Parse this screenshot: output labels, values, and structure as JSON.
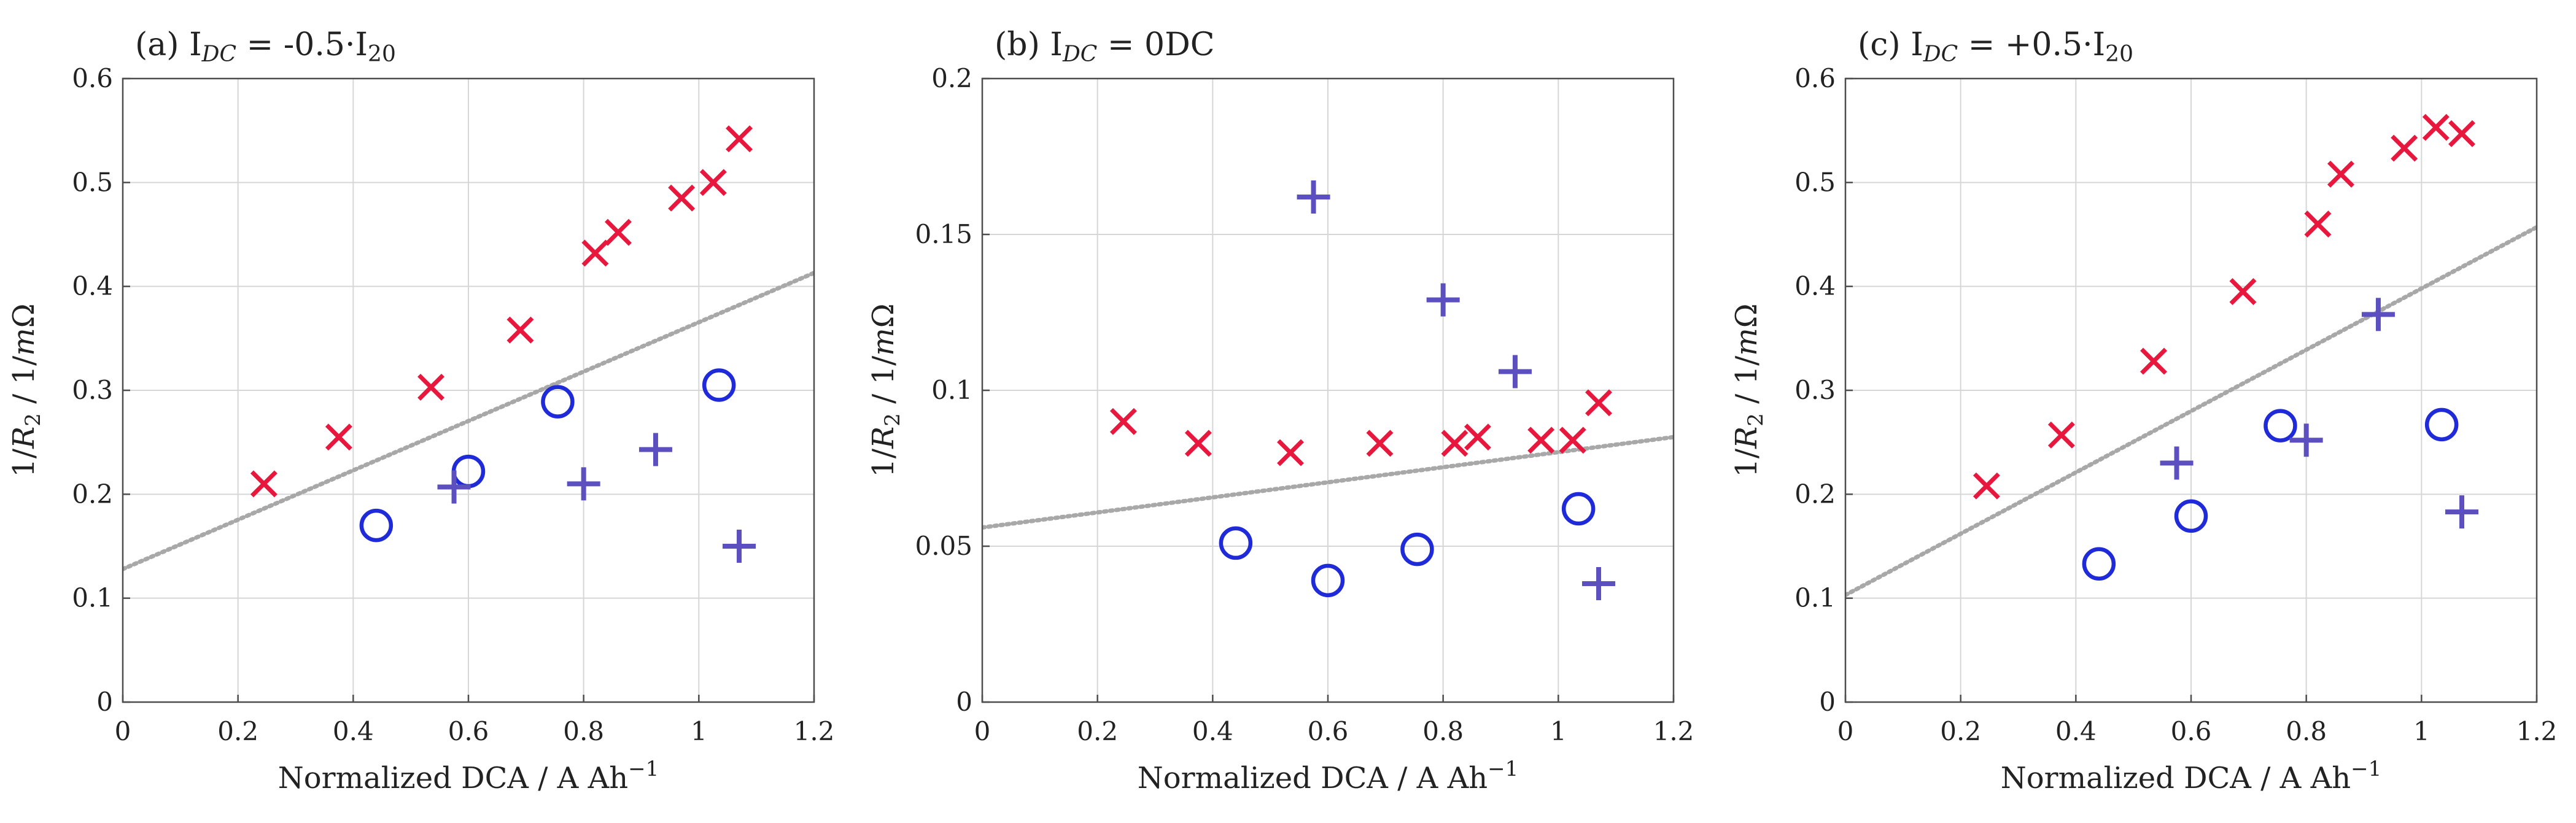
{
  "chart_data": [
    {
      "type": "scatter",
      "panel": "a",
      "title": "(a) I_DC = -0.5·I_20",
      "title_parts": {
        "prefix": "(a) I",
        "sub": "DC",
        "eq": " = -0.5·I",
        "sub2": "20"
      },
      "xlabel": "Normalized DCA / A Ah",
      "xlabel_sup": "−1",
      "ylabel": "1/R₂ / 1/mΩ",
      "ylabel_parts": {
        "a": "1/",
        "r": "R",
        "sub": "2",
        "b": " / 1/",
        "m": "m",
        "omega": "Ω"
      },
      "xlim": [
        0,
        1.2
      ],
      "ylim": [
        0,
        0.6
      ],
      "xticks": [
        0,
        0.2,
        0.4,
        0.6,
        0.8,
        1,
        1.2
      ],
      "xtick_labels": [
        "0",
        "0.2",
        "0.4",
        "0.6",
        "0.8",
        "1",
        "1.2"
      ],
      "yticks": [
        0,
        0.1,
        0.2,
        0.3,
        0.4,
        0.5,
        0.6
      ],
      "ytick_labels": [
        "0",
        "0.1",
        "0.2",
        "0.3",
        "0.4",
        "0.5",
        "0.6"
      ],
      "grid": true,
      "series": [
        {
          "name": "cross",
          "marker": "x",
          "color": "#e8173d",
          "x": [
            0.245,
            0.375,
            0.535,
            0.69,
            0.82,
            0.86,
            0.97,
            1.025,
            1.07
          ],
          "y": [
            0.21,
            0.255,
            0.303,
            0.358,
            0.432,
            0.452,
            0.485,
            0.5,
            0.542
          ]
        },
        {
          "name": "circle",
          "marker": "o",
          "color": "#1f2bd9",
          "x": [
            0.44,
            0.6,
            0.755,
            1.035
          ],
          "y": [
            0.17,
            0.222,
            0.289,
            0.305
          ]
        },
        {
          "name": "plus",
          "marker": "+",
          "color": "#5c4fbf",
          "x": [
            0.575,
            0.8,
            0.925,
            1.07
          ],
          "y": [
            0.207,
            0.21,
            0.243,
            0.15
          ]
        }
      ],
      "trendline": {
        "x": [
          0,
          1.2
        ],
        "y": [
          0.128,
          0.413
        ]
      }
    },
    {
      "type": "scatter",
      "panel": "b",
      "title": "(b) I_DC = 0DC",
      "title_parts": {
        "prefix": "(b) I",
        "sub": "DC",
        "eq": " = 0DC",
        "sub2": ""
      },
      "xlabel": "Normalized DCA / A Ah",
      "xlabel_sup": "−1",
      "ylabel": "1/R₂ / 1/mΩ",
      "ylabel_parts": {
        "a": "1/",
        "r": "R",
        "sub": "2",
        "b": " / 1/",
        "m": "m",
        "omega": "Ω"
      },
      "xlim": [
        0,
        1.2
      ],
      "ylim": [
        0,
        0.2
      ],
      "xticks": [
        0,
        0.2,
        0.4,
        0.6,
        0.8,
        1,
        1.2
      ],
      "xtick_labels": [
        "0",
        "0.2",
        "0.4",
        "0.6",
        "0.8",
        "1",
        "1.2"
      ],
      "yticks": [
        0,
        0.05,
        0.1,
        0.15,
        0.2
      ],
      "ytick_labels": [
        "0",
        "0.05",
        "0.1",
        "0.15",
        "0.2"
      ],
      "grid": true,
      "series": [
        {
          "name": "cross",
          "marker": "x",
          "color": "#e8173d",
          "x": [
            0.245,
            0.375,
            0.535,
            0.69,
            0.82,
            0.86,
            0.97,
            1.025,
            1.07
          ],
          "y": [
            0.09,
            0.083,
            0.08,
            0.083,
            0.083,
            0.085,
            0.084,
            0.084,
            0.096
          ]
        },
        {
          "name": "circle",
          "marker": "o",
          "color": "#1f2bd9",
          "x": [
            0.44,
            0.6,
            0.755,
            1.035
          ],
          "y": [
            0.051,
            0.039,
            0.049,
            0.062
          ]
        },
        {
          "name": "plus",
          "marker": "+",
          "color": "#5c4fbf",
          "x": [
            0.575,
            0.8,
            0.925,
            1.07
          ],
          "y": [
            0.162,
            0.129,
            0.106,
            0.038
          ]
        }
      ],
      "trendline": {
        "x": [
          0,
          1.2
        ],
        "y": [
          0.056,
          0.085
        ]
      }
    },
    {
      "type": "scatter",
      "panel": "c",
      "title": "(c) I_DC = +0.5·I_20",
      "title_parts": {
        "prefix": "(c) I",
        "sub": "DC",
        "eq": " = +0.5·I",
        "sub2": "20"
      },
      "xlabel": "Normalized DCA / A Ah",
      "xlabel_sup": "−1",
      "ylabel": "1/R₂ / 1/mΩ",
      "ylabel_parts": {
        "a": "1/",
        "r": "R",
        "sub": "2",
        "b": " / 1/",
        "m": "m",
        "omega": "Ω"
      },
      "xlim": [
        0,
        1.2
      ],
      "ylim": [
        0,
        0.6
      ],
      "xticks": [
        0,
        0.2,
        0.4,
        0.6,
        0.8,
        1,
        1.2
      ],
      "xtick_labels": [
        "0",
        "0.2",
        "0.4",
        "0.6",
        "0.8",
        "1",
        "1.2"
      ],
      "yticks": [
        0,
        0.1,
        0.2,
        0.3,
        0.4,
        0.5,
        0.6
      ],
      "ytick_labels": [
        "0",
        "0.1",
        "0.2",
        "0.3",
        "0.4",
        "0.5",
        "0.6"
      ],
      "grid": true,
      "series": [
        {
          "name": "cross",
          "marker": "x",
          "color": "#e8173d",
          "x": [
            0.245,
            0.375,
            0.535,
            0.69,
            0.82,
            0.86,
            0.97,
            1.025,
            1.07
          ],
          "y": [
            0.208,
            0.257,
            0.328,
            0.395,
            0.46,
            0.508,
            0.533,
            0.553,
            0.547
          ]
        },
        {
          "name": "circle",
          "marker": "o",
          "color": "#1f2bd9",
          "x": [
            0.44,
            0.6,
            0.755,
            1.035
          ],
          "y": [
            0.133,
            0.179,
            0.266,
            0.267
          ]
        },
        {
          "name": "plus",
          "marker": "+",
          "color": "#5c4fbf",
          "x": [
            0.575,
            0.8,
            0.925,
            1.07
          ],
          "y": [
            0.23,
            0.252,
            0.373,
            0.183
          ]
        }
      ],
      "trendline": {
        "x": [
          0,
          1.2
        ],
        "y": [
          0.103,
          0.457
        ]
      }
    }
  ]
}
